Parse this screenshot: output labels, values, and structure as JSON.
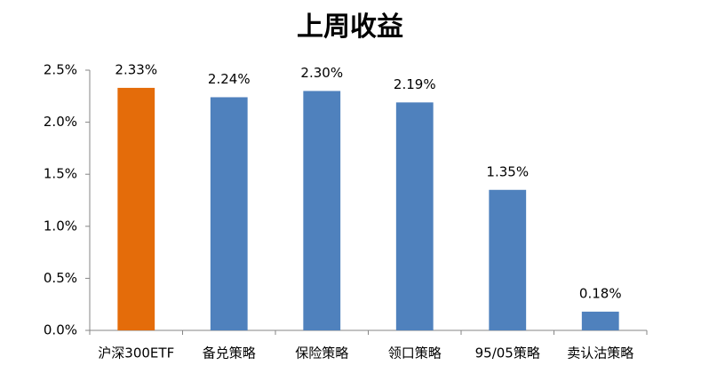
{
  "chart_data": {
    "type": "bar",
    "title": "上周收益",
    "categories": [
      "沪深300ETF",
      "备兑策略",
      "保险策略",
      "领口策略",
      "95/05策略",
      "卖认沽策略"
    ],
    "values": [
      2.33,
      2.24,
      2.3,
      2.19,
      1.35,
      0.18
    ],
    "value_labels": [
      "2.33%",
      "2.24%",
      "2.30%",
      "2.19%",
      "1.35%",
      "0.18%"
    ],
    "colors": [
      "#e46c0a",
      "#4f81bd",
      "#4f81bd",
      "#4f81bd",
      "#4f81bd",
      "#4f81bd"
    ],
    "ylim": [
      0,
      2.5
    ],
    "yticks": [
      {
        "value": 0,
        "label": "0.0%"
      },
      {
        "value": 0.5,
        "label": "0.5%"
      },
      {
        "value": 1,
        "label": "1.0%"
      },
      {
        "value": 1.5,
        "label": "1.5%"
      },
      {
        "value": 2,
        "label": "2.0%"
      },
      {
        "value": 2.5,
        "label": "2.5%"
      }
    ],
    "grid": false
  }
}
